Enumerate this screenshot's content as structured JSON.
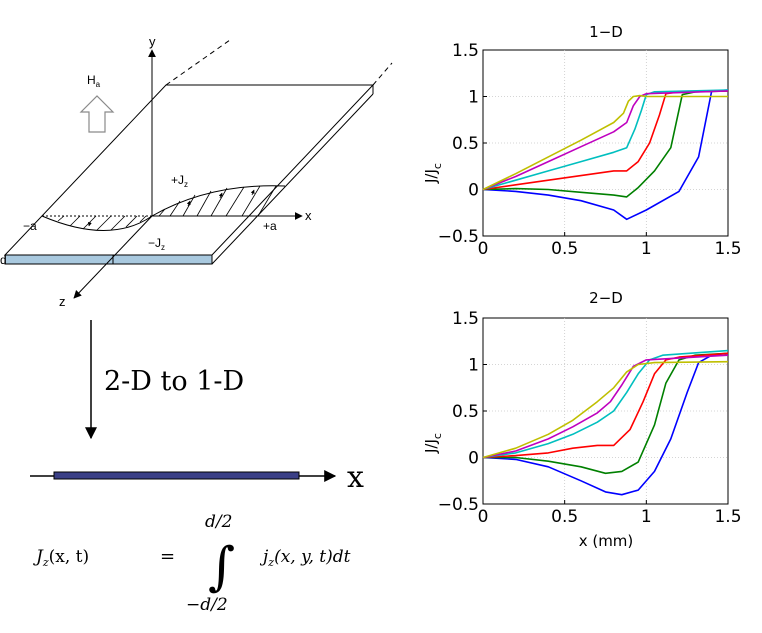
{
  "diagram": {
    "strip": {
      "y_axis_label": "y",
      "x_axis_label": "x",
      "z_axis_label": "z",
      "field_label": "H",
      "field_subscript": "a",
      "plus_current_label": "+J",
      "minus_current_label": "−J",
      "current_subscript": "z",
      "left_edge_label": "−a",
      "right_edge_label": "+a",
      "thickness_label": "d"
    },
    "reduction_label": "2-D to 1-D",
    "line_axis_label": "x",
    "equation": {
      "lhs": "J",
      "lhs_sub": "z",
      "lhs_args": "(x, t)",
      "equals": "=",
      "upper_limit": "d/2",
      "lower_limit": "−d/2",
      "integral_sign": "∫",
      "integrand": "j",
      "integrand_sub": "z",
      "integrand_args": "(x, y, t)dt"
    }
  },
  "colors": {
    "strip_fill": "#a9c9df",
    "line_fill": "#3a3f86",
    "series": [
      "#0000ff",
      "#008000",
      "#ff0000",
      "#00bfbf",
      "#bf00bf",
      "#bfbf00"
    ]
  },
  "chart_data": [
    {
      "type": "line",
      "title": "1−D",
      "xlabel": "",
      "ylabel_main": "J/J",
      "ylabel_sub": "c",
      "xlim": [
        0,
        1.5
      ],
      "ylim": [
        -0.5,
        1.5
      ],
      "x_ticks": [
        "0",
        "0.5",
        "1",
        "1.5"
      ],
      "y_ticks": [
        "−0.5",
        "0",
        "0.5",
        "1",
        "1.5"
      ],
      "grid": true,
      "series": [
        {
          "x": [
            0,
            0.2,
            0.4,
            0.6,
            0.8,
            0.88,
            1.0,
            1.2,
            1.32,
            1.4,
            1.5
          ],
          "y": [
            0,
            -0.02,
            -0.06,
            -0.12,
            -0.22,
            -0.32,
            -0.22,
            -0.02,
            0.35,
            1.06,
            1.07
          ]
        },
        {
          "x": [
            0,
            0.2,
            0.4,
            0.6,
            0.8,
            0.88,
            0.95,
            1.05,
            1.15,
            1.22,
            1.3,
            1.5
          ],
          "y": [
            0,
            0.01,
            0.0,
            -0.03,
            -0.06,
            -0.08,
            0.02,
            0.2,
            0.45,
            1.02,
            1.05,
            1.06
          ]
        },
        {
          "x": [
            0,
            0.2,
            0.4,
            0.6,
            0.8,
            0.88,
            0.95,
            1.02,
            1.08,
            1.12,
            1.2,
            1.5
          ],
          "y": [
            0,
            0.05,
            0.1,
            0.15,
            0.2,
            0.2,
            0.3,
            0.5,
            0.8,
            1.03,
            1.05,
            1.06
          ]
        },
        {
          "x": [
            0,
            0.2,
            0.4,
            0.6,
            0.8,
            0.88,
            0.93,
            0.97,
            1.0,
            1.05,
            1.5
          ],
          "y": [
            0,
            0.1,
            0.2,
            0.3,
            0.4,
            0.45,
            0.65,
            0.85,
            1.02,
            1.05,
            1.07
          ]
        },
        {
          "x": [
            0,
            0.2,
            0.4,
            0.6,
            0.8,
            0.88,
            0.92,
            0.96,
            1.0,
            1.5
          ],
          "y": [
            0,
            0.14,
            0.3,
            0.46,
            0.62,
            0.72,
            0.9,
            1.0,
            1.03,
            1.06
          ]
        },
        {
          "x": [
            0,
            0.2,
            0.4,
            0.6,
            0.8,
            0.86,
            0.89,
            0.92,
            0.96,
            1.0,
            1.5
          ],
          "y": [
            0,
            0.17,
            0.35,
            0.53,
            0.72,
            0.82,
            0.95,
            1.0,
            1.01,
            1.0,
            1.0
          ]
        }
      ]
    },
    {
      "type": "line",
      "title": "2−D",
      "xlabel": "x (mm)",
      "ylabel_main": "J/J",
      "ylabel_sub": "c",
      "xlim": [
        0,
        1.5
      ],
      "ylim": [
        -0.5,
        1.5
      ],
      "x_ticks": [
        "0",
        "0.5",
        "1",
        "1.5"
      ],
      "y_ticks": [
        "−0.5",
        "0",
        "0.5",
        "1",
        "1.5"
      ],
      "grid": true,
      "series": [
        {
          "x": [
            0,
            0.2,
            0.4,
            0.6,
            0.75,
            0.85,
            0.95,
            1.05,
            1.15,
            1.25,
            1.32,
            1.4,
            1.5
          ],
          "y": [
            0,
            -0.02,
            -0.1,
            -0.25,
            -0.37,
            -0.4,
            -0.35,
            -0.15,
            0.2,
            0.7,
            1.02,
            1.1,
            1.12
          ]
        },
        {
          "x": [
            0,
            0.2,
            0.4,
            0.6,
            0.75,
            0.85,
            0.95,
            1.05,
            1.12,
            1.2,
            1.3,
            1.5
          ],
          "y": [
            0,
            0.0,
            -0.04,
            -0.1,
            -0.17,
            -0.15,
            -0.05,
            0.35,
            0.8,
            1.05,
            1.1,
            1.12
          ]
        },
        {
          "x": [
            0,
            0.2,
            0.4,
            0.55,
            0.7,
            0.8,
            0.9,
            0.98,
            1.05,
            1.12,
            1.2,
            1.5
          ],
          "y": [
            0,
            0.02,
            0.05,
            0.1,
            0.13,
            0.13,
            0.3,
            0.6,
            0.9,
            1.05,
            1.08,
            1.12
          ]
        },
        {
          "x": [
            0,
            0.2,
            0.4,
            0.55,
            0.7,
            0.8,
            0.88,
            0.95,
            1.02,
            1.1,
            1.5
          ],
          "y": [
            0,
            0.05,
            0.15,
            0.25,
            0.38,
            0.5,
            0.7,
            0.9,
            1.05,
            1.1,
            1.15
          ]
        },
        {
          "x": [
            0,
            0.2,
            0.4,
            0.55,
            0.7,
            0.78,
            0.85,
            0.92,
            1.0,
            1.5
          ],
          "y": [
            0,
            0.07,
            0.2,
            0.33,
            0.48,
            0.6,
            0.78,
            0.98,
            1.05,
            1.1
          ]
        },
        {
          "x": [
            0,
            0.2,
            0.4,
            0.55,
            0.7,
            0.8,
            0.88,
            0.95,
            1.05,
            1.5
          ],
          "y": [
            0,
            0.1,
            0.25,
            0.4,
            0.6,
            0.75,
            0.92,
            1.0,
            1.02,
            1.03
          ]
        }
      ]
    }
  ]
}
